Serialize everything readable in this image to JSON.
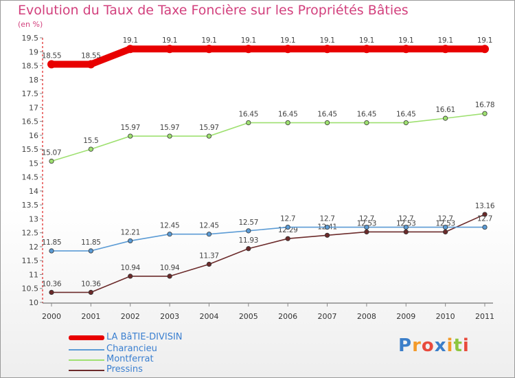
{
  "chart_data": {
    "type": "line",
    "title": "Evolution du Taux de Taxe Foncière sur les Propriétés Bâties",
    "ylabel": "(en %)",
    "xlabel": "",
    "x": [
      "2000",
      "2001",
      "2002",
      "2003",
      "2004",
      "2005",
      "2006",
      "2007",
      "2008",
      "2009",
      "2010",
      "2011"
    ],
    "ylim": [
      10,
      19.5
    ],
    "yticks": [
      "10",
      "10.5",
      "11",
      "11.5",
      "12",
      "12.5",
      "13",
      "13.5",
      "14",
      "14.5",
      "15",
      "15.5",
      "16",
      "16.5",
      "17",
      "17.5",
      "18",
      "18.5",
      "19",
      "19.5"
    ],
    "grid": false,
    "legend_position": "bottom-left",
    "series": [
      {
        "name": "LA BâTIE-DIVISIN",
        "color": "#e80000",
        "values": [
          18.55,
          18.55,
          19.1,
          19.1,
          19.1,
          19.1,
          19.1,
          19.1,
          19.1,
          19.1,
          19.1,
          19.1
        ],
        "labels": [
          "18.55",
          "18.55",
          "19.1",
          "19.1",
          "19.1",
          "19.1",
          "19.1",
          "19.1",
          "19.1",
          "19.1",
          "19.1",
          "19.1"
        ]
      },
      {
        "name": "Charancieu",
        "color": "#5b9bd5",
        "values": [
          11.85,
          11.85,
          12.21,
          12.45,
          12.45,
          12.57,
          12.7,
          12.7,
          12.7,
          12.7,
          12.7,
          12.7
        ],
        "labels": [
          "11.85",
          "11.85",
          "12.21",
          "12.45",
          "12.45",
          "12.57",
          "12.7",
          "12.7",
          "12.7",
          "12.7",
          "12.7",
          "12.7"
        ]
      },
      {
        "name": "Montferrat",
        "color": "#9ee070",
        "values": [
          15.07,
          15.5,
          15.97,
          15.97,
          15.97,
          16.45,
          16.45,
          16.45,
          16.45,
          16.45,
          16.61,
          16.78
        ],
        "labels": [
          "15.07",
          "15.5",
          "15.97",
          "15.97",
          "15.97",
          "16.45",
          "16.45",
          "16.45",
          "16.45",
          "16.45",
          "16.61",
          "16.78"
        ]
      },
      {
        "name": "Pressins",
        "color": "#6b2a2a",
        "values": [
          10.36,
          10.36,
          10.94,
          10.94,
          11.37,
          11.93,
          12.29,
          12.41,
          12.53,
          12.53,
          12.53,
          13.16
        ],
        "labels": [
          "10.36",
          "10.36",
          "10.94",
          "10.94",
          "11.37",
          "11.93",
          "12.29",
          "12.41",
          "12.53",
          "12.53",
          "12.53",
          "13.16"
        ]
      }
    ]
  },
  "logo": {
    "letters": [
      "P",
      "r",
      "o",
      "x",
      "i",
      "t",
      "i"
    ]
  }
}
